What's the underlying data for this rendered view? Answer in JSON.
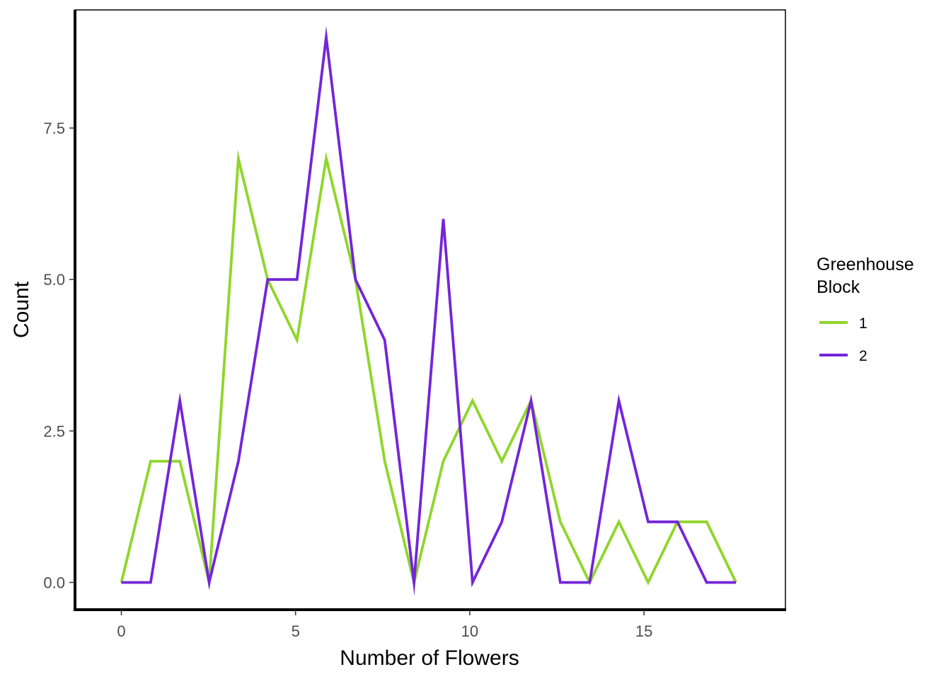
{
  "chart_data": {
    "type": "line",
    "xlabel": "Number of Flowers",
    "ylabel": "Count",
    "xlim": [
      -1.33,
      19.06
    ],
    "ylim": [
      -0.45,
      9.45
    ],
    "x_ticks": [
      0,
      5,
      10,
      15
    ],
    "x_tick_labels": [
      "0",
      "5",
      "10",
      "15"
    ],
    "y_ticks": [
      0,
      2.5,
      5,
      7.5
    ],
    "y_tick_labels": [
      "0.0",
      "2.5",
      "5.0",
      "7.5"
    ],
    "grid": false,
    "legend": {
      "title_lines": [
        "Greenhouse",
        "Block"
      ],
      "position": "right"
    },
    "x": [
      0,
      0.84,
      1.68,
      2.52,
      3.36,
      4.2,
      5.04,
      5.88,
      6.72,
      7.56,
      8.4,
      9.24,
      10.08,
      10.92,
      11.76,
      12.6,
      13.44,
      14.28,
      15.12,
      15.96,
      16.8,
      17.64
    ],
    "series": [
      {
        "name": "1",
        "color": "#8fd62a",
        "values": [
          0,
          2,
          2,
          0,
          7,
          5,
          4,
          7,
          5,
          2,
          0,
          2,
          3,
          2,
          3,
          1,
          0,
          1,
          0,
          1,
          1,
          0
        ]
      },
      {
        "name": "2",
        "color": "#7425d9",
        "values": [
          0,
          0,
          3,
          0,
          2,
          5,
          5,
          9,
          5,
          4,
          0,
          6,
          0,
          1,
          3,
          0,
          0,
          3,
          1,
          1,
          0,
          0
        ]
      }
    ]
  }
}
